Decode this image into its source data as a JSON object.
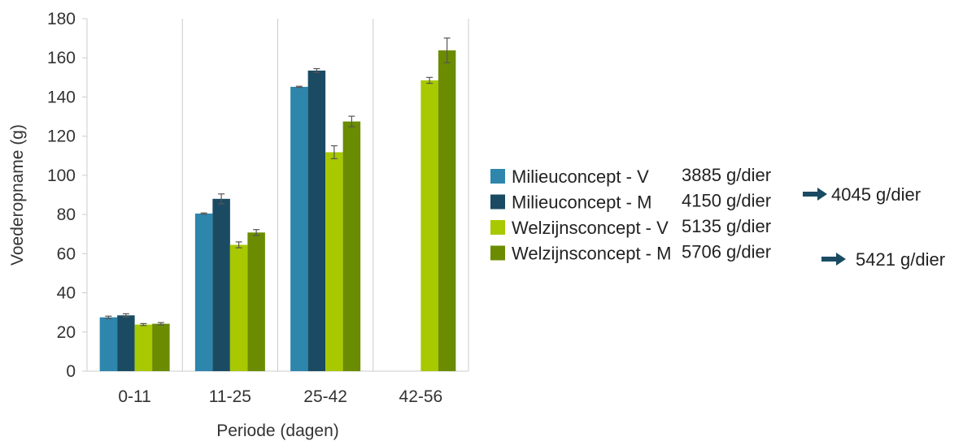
{
  "chart_data": {
    "type": "bar",
    "xlabel": "Periode (dagen)",
    "ylabel": "Voederopname (g)",
    "ylim": [
      0,
      180
    ],
    "yticks": [
      0,
      20,
      40,
      60,
      80,
      100,
      120,
      140,
      160,
      180
    ],
    "categories": [
      "0-11",
      "11-25",
      "25-42",
      "42-56"
    ],
    "grid": "vertical category separators",
    "series": [
      {
        "name": "Milieuconcept - V",
        "total": "3885 g/dier",
        "color": "#2e86ac",
        "values": [
          27.5,
          80.5,
          145.2,
          null
        ],
        "errors": [
          0.6,
          0.3,
          0.3,
          null
        ]
      },
      {
        "name": "Milieuconcept - M",
        "total": "4150 g/dier",
        "color": "#1b4b63",
        "values": [
          28.5,
          88.0,
          153.5,
          null
        ],
        "errors": [
          0.8,
          2.5,
          1.0,
          null
        ]
      },
      {
        "name": "Welzijnsconcept - V",
        "total": "5135 g/dier",
        "color": "#a8c800",
        "values": [
          23.8,
          64.5,
          111.8,
          148.5
        ],
        "errors": [
          0.5,
          1.5,
          3.3,
          1.5
        ]
      },
      {
        "name": "Welzijnsconcept - M",
        "total": "5706 g/dier",
        "color": "#6b8c00",
        "values": [
          24.2,
          70.8,
          127.5,
          163.8
        ],
        "errors": [
          0.6,
          1.5,
          2.7,
          6.3
        ]
      }
    ],
    "annotations": [
      {
        "text": "4045 g/dier",
        "groups": [
          "Milieuconcept - V",
          "Milieuconcept - M"
        ]
      },
      {
        "text": "5421 g/dier",
        "groups": [
          "Welzijnsconcept - V",
          "Welzijnsconcept - M"
        ]
      }
    ]
  },
  "colors": {
    "axis": "#cccccc",
    "text": "#333333",
    "arrow": "#1b4b63"
  }
}
